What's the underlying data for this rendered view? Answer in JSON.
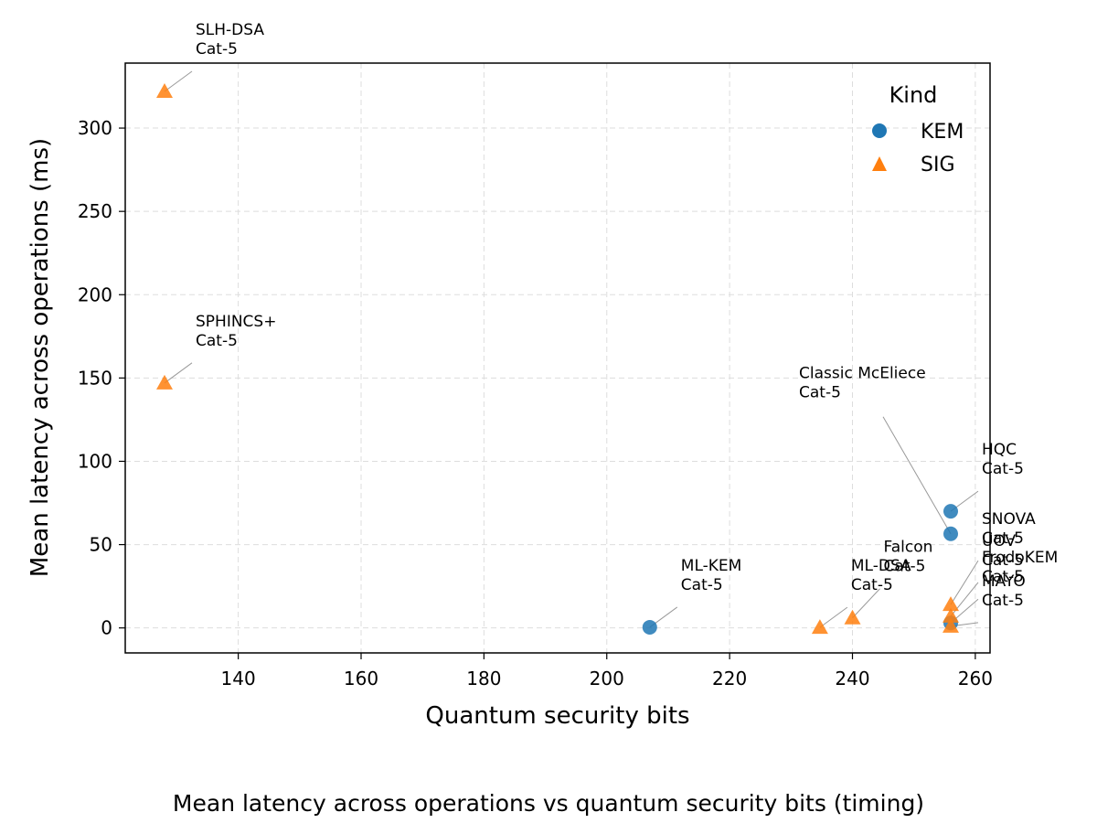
{
  "caption": "Mean latency across operations vs quantum security bits (timing)",
  "chart_data": {
    "type": "scatter",
    "title": "",
    "xlabel": "Quantum security bits",
    "ylabel": "Mean latency across operations (ms)",
    "xlim": [
      121.6,
      262.4
    ],
    "ylim": [
      -15,
      339
    ],
    "xticks": [
      140,
      160,
      180,
      200,
      220,
      240,
      260
    ],
    "yticks": [
      0,
      50,
      100,
      150,
      200,
      250,
      300
    ],
    "grid": true,
    "legend": {
      "title": "Kind",
      "placement": "top-right"
    },
    "series": [
      {
        "name": "KEM",
        "marker": "circle",
        "color": "#1f77b4",
        "points": [
          {
            "x": 207,
            "y": 0.4,
            "label": [
              "ML-KEM",
              "Cat-5"
            ]
          },
          {
            "x": 256,
            "y": 70,
            "label": [
              "HQC",
              "Cat-5"
            ]
          },
          {
            "x": 256,
            "y": 56.5,
            "label": [
              "Classic McEliece",
              "Cat-5"
            ]
          },
          {
            "x": 256,
            "y": 3,
            "label": [
              "FrodoKEM",
              "Cat-5"
            ]
          }
        ]
      },
      {
        "name": "SIG",
        "marker": "triangle",
        "color": "#ff7f0e",
        "points": [
          {
            "x": 128,
            "y": 322,
            "label": [
              "SLH-DSA",
              "Cat-5"
            ]
          },
          {
            "x": 128,
            "y": 147,
            "label": [
              "SPHINCS+",
              "Cat-5"
            ]
          },
          {
            "x": 234.7,
            "y": 0.3,
            "label": [
              "ML-DSA",
              "Cat-5"
            ]
          },
          {
            "x": 240,
            "y": 6,
            "label": [
              "Falcon",
              "Cat-5"
            ]
          },
          {
            "x": 256,
            "y": 14,
            "label": [
              "SNOVA",
              "Cat-5"
            ]
          },
          {
            "x": 256,
            "y": 7,
            "label": [
              "UOV",
              "Cat-5"
            ]
          },
          {
            "x": 256,
            "y": 1,
            "label": [
              "MAYO",
              "Cat-5"
            ]
          }
        ]
      }
    ]
  }
}
